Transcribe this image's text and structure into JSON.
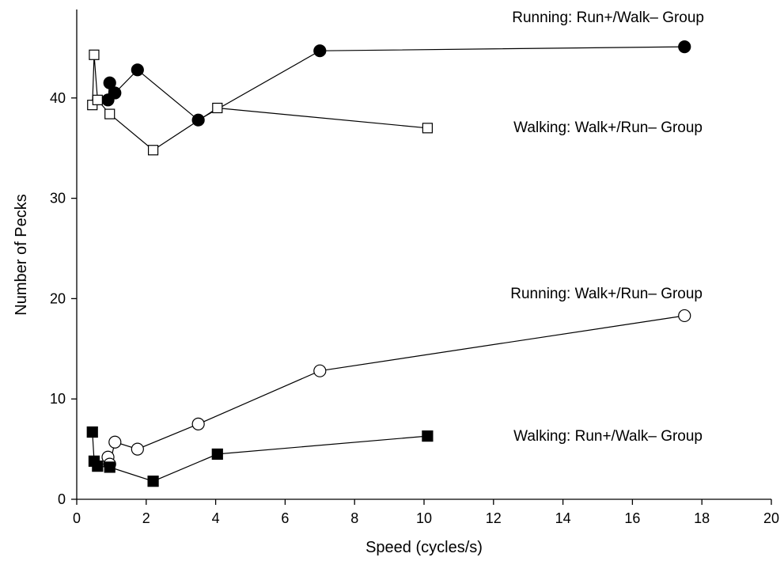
{
  "chart_data": {
    "type": "line",
    "title": "",
    "xlabel": "Speed (cycles/s)",
    "ylabel": "Number of Pecks",
    "xlim": [
      0,
      20
    ],
    "ylim": [
      0,
      48
    ],
    "xticks": [
      0,
      2,
      4,
      6,
      8,
      10,
      12,
      14,
      16,
      18,
      20
    ],
    "yticks": [
      0,
      10,
      20,
      30,
      40
    ],
    "grid": false,
    "legend": "inline labels next to each series",
    "series": [
      {
        "name": "Running: Run+/Walk– Group",
        "marker": "filled-circle",
        "x": [
          0.9,
          0.95,
          1.1,
          1.75,
          3.5,
          7.0,
          17.5
        ],
        "y": [
          39.8,
          41.5,
          40.5,
          42.8,
          37.8,
          44.7,
          45.1
        ]
      },
      {
        "name": "Walking: Walk+/Run– Group",
        "marker": "open-square",
        "x": [
          0.45,
          0.5,
          0.6,
          0.95,
          2.2,
          4.05,
          10.1
        ],
        "y": [
          39.3,
          44.3,
          39.8,
          38.4,
          34.8,
          39.0,
          37.0
        ]
      },
      {
        "name": "Running: Walk+/Run– Group",
        "marker": "open-circle",
        "x": [
          0.9,
          0.95,
          1.1,
          1.75,
          3.5,
          7.0,
          17.5
        ],
        "y": [
          4.2,
          3.5,
          5.7,
          5.0,
          7.5,
          12.8,
          18.3
        ]
      },
      {
        "name": "Walking: Run+/Walk– Group",
        "marker": "filled-square",
        "x": [
          0.45,
          0.5,
          0.6,
          0.95,
          2.2,
          4.05,
          10.1
        ],
        "y": [
          6.7,
          3.8,
          3.3,
          3.2,
          1.8,
          4.5,
          6.3
        ]
      }
    ]
  }
}
